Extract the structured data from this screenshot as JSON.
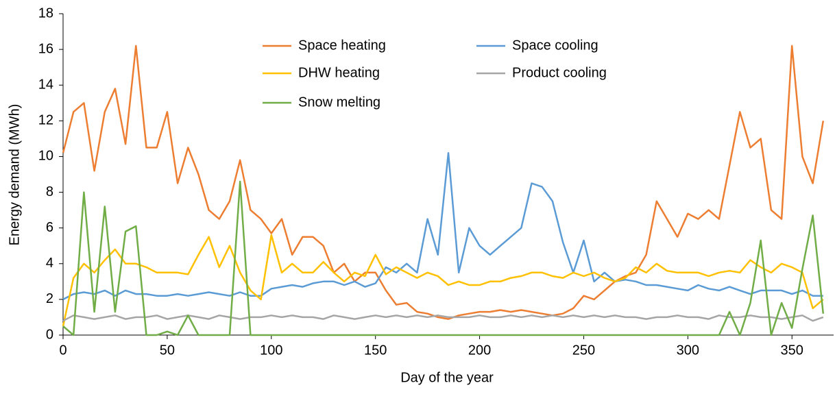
{
  "chart_data": {
    "type": "line",
    "xlabel": "Day of the year",
    "ylabel": "Energy demand (MWh)",
    "x": [
      0,
      5,
      10,
      15,
      20,
      25,
      30,
      35,
      40,
      45,
      50,
      55,
      60,
      65,
      70,
      75,
      80,
      85,
      90,
      95,
      100,
      105,
      110,
      115,
      120,
      125,
      130,
      135,
      140,
      145,
      150,
      155,
      160,
      165,
      170,
      175,
      180,
      185,
      190,
      195,
      200,
      205,
      210,
      215,
      220,
      225,
      230,
      235,
      240,
      245,
      250,
      255,
      260,
      265,
      270,
      275,
      280,
      285,
      290,
      295,
      300,
      305,
      310,
      315,
      320,
      325,
      330,
      335,
      340,
      345,
      350,
      355,
      360,
      365
    ],
    "xlim": [
      0,
      370
    ],
    "xticks": [
      0,
      50,
      100,
      150,
      200,
      250,
      300,
      350
    ],
    "ylim": [
      0,
      18
    ],
    "yticks": [
      0,
      2,
      4,
      6,
      8,
      10,
      12,
      14,
      16,
      18
    ],
    "legend": "top",
    "series": [
      {
        "name": "Space heating",
        "color": "#ED7D31",
        "values": [
          10.2,
          12.5,
          13,
          9.2,
          12.5,
          13.8,
          10.7,
          16.2,
          10.5,
          10.5,
          12.5,
          8.5,
          10.5,
          9,
          7,
          6.5,
          7.5,
          9.8,
          7,
          6.5,
          5.7,
          6.5,
          4.5,
          5.5,
          5.5,
          5,
          3.5,
          4,
          3,
          3.5,
          3.5,
          2.5,
          1.7,
          1.8,
          1.3,
          1.2,
          1,
          0.9,
          1.1,
          1.2,
          1.3,
          1.3,
          1.4,
          1.3,
          1.4,
          1.3,
          1.2,
          1.1,
          1.2,
          1.5,
          2.2,
          2,
          2.5,
          3,
          3.3,
          3.5,
          4.5,
          7.5,
          6.5,
          5.5,
          6.8,
          6.5,
          7,
          6.5,
          9.5,
          12.5,
          10.5,
          11,
          7,
          6.5,
          16.2,
          10,
          8.5,
          12
        ]
      },
      {
        "name": "Space cooling",
        "color": "#5B9BD5",
        "values": [
          2,
          2.3,
          2.4,
          2.3,
          2.5,
          2.2,
          2.5,
          2.3,
          2.3,
          2.2,
          2.2,
          2.3,
          2.2,
          2.3,
          2.4,
          2.3,
          2.2,
          2.4,
          2.2,
          2.2,
          2.6,
          2.7,
          2.8,
          2.7,
          2.9,
          3,
          3,
          2.8,
          3,
          2.7,
          2.9,
          3.8,
          3.5,
          4,
          3.5,
          6.5,
          4.5,
          10.2,
          3.5,
          6,
          5,
          4.5,
          5,
          5.5,
          6,
          8.5,
          8.3,
          7.5,
          5.2,
          3.5,
          5.3,
          3,
          3.5,
          3,
          3.1,
          3,
          2.8,
          2.8,
          2.7,
          2.6,
          2.5,
          2.8,
          2.6,
          2.5,
          2.7,
          2.5,
          2.3,
          2.5,
          2.5,
          2.5,
          2.3,
          2.5,
          2.2,
          2.2
        ]
      },
      {
        "name": "DHW heating",
        "color": "#FFC000",
        "values": [
          0.5,
          3.2,
          4,
          3.5,
          4.2,
          4.8,
          4,
          4,
          3.8,
          3.5,
          3.5,
          3.5,
          3.4,
          4.5,
          5.5,
          3.8,
          5,
          3.5,
          2.5,
          2,
          5.6,
          3.5,
          4,
          3.5,
          3.5,
          4.1,
          3.5,
          3,
          3.5,
          3.3,
          4.5,
          3.4,
          3.8,
          3.5,
          3.2,
          3.5,
          3.3,
          2.8,
          3,
          2.8,
          2.8,
          3,
          3,
          3.2,
          3.3,
          3.5,
          3.5,
          3.3,
          3.2,
          3.5,
          3.3,
          3.5,
          3.2,
          3,
          3.2,
          3.8,
          3.5,
          4,
          3.6,
          3.5,
          3.5,
          3.5,
          3.3,
          3.5,
          3.6,
          3.5,
          4.2,
          3.8,
          3.5,
          4,
          3.8,
          3.5,
          1.5,
          2
        ]
      },
      {
        "name": "Product cooling",
        "color": "#A5A5A5",
        "values": [
          0.8,
          1.1,
          1,
          0.9,
          1,
          1.1,
          0.9,
          1,
          1,
          1.1,
          0.9,
          1,
          1.1,
          1,
          0.9,
          1.1,
          1,
          0.9,
          1,
          1,
          1.1,
          1,
          1.1,
          1,
          1,
          0.9,
          1.1,
          1,
          0.9,
          1,
          1.1,
          1,
          1.1,
          1,
          1.1,
          1,
          1.1,
          1,
          1,
          1,
          1.1,
          1,
          1,
          1.1,
          1,
          1.1,
          1,
          1.1,
          1,
          1.1,
          1,
          1.1,
          1,
          1.1,
          1,
          1,
          0.9,
          1,
          1,
          1.1,
          1,
          1,
          0.9,
          1.1,
          1,
          1,
          1.1,
          1,
          1,
          0.9,
          1,
          1.1,
          0.8,
          1
        ]
      },
      {
        "name": "Snow melting",
        "color": "#70AD47",
        "values": [
          0.5,
          0,
          8,
          1.3,
          7.2,
          1.3,
          5.8,
          6.1,
          0,
          0,
          0.2,
          0,
          1.1,
          0,
          0,
          0,
          0,
          8.6,
          0,
          0,
          0,
          0,
          0,
          0,
          0,
          0,
          0,
          0,
          0,
          0,
          0,
          0,
          0,
          0,
          0,
          0,
          0,
          0,
          0,
          0,
          0,
          0,
          0,
          0,
          0,
          0,
          0,
          0,
          0,
          0,
          0,
          0,
          0,
          0,
          0,
          0,
          0,
          0,
          0,
          0,
          0,
          0,
          0,
          0,
          1.3,
          0,
          1.8,
          5.3,
          0,
          1.8,
          0.4,
          3.7,
          6.7,
          1.2
        ]
      }
    ]
  }
}
